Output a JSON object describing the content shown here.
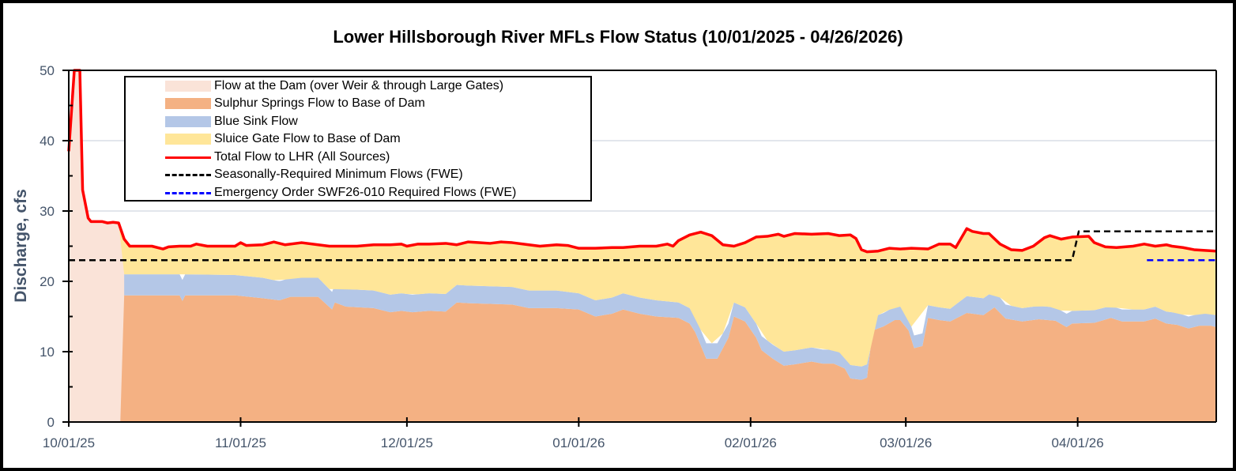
{
  "chart_data": {
    "type": "area",
    "title": "Lower Hillsborough River MFLs Flow Status (10/01/2025 - 04/26/2026)",
    "xlabel": "",
    "ylabel": "Discharge, cfs",
    "ylim": [
      0,
      50
    ],
    "yticks": [
      0,
      10,
      20,
      30,
      40,
      50
    ],
    "xticks": [
      "10/01/25",
      "11/01/25",
      "12/01/25",
      "01/01/26",
      "02/01/26",
      "03/01/26",
      "04/01/26"
    ],
    "xtick_days": [
      0,
      31,
      61,
      92,
      123,
      151,
      182
    ],
    "x_range_days": [
      0,
      207
    ],
    "grid": "horizontal",
    "legend_position": "upper-left inside plot",
    "colors": {
      "dam": "#fae3d8",
      "sulphur": "#f4b183",
      "bluesink": "#b4c7e7",
      "sluice": "#ffe699",
      "total": "#ff0000",
      "seasonal": "#000000",
      "emergency": "#0000ff"
    },
    "series": [
      {
        "name": "Flow at the Dam (over Weir & through Large Gates)",
        "kind": "stacked-area",
        "points": [
          [
            0,
            38.5
          ],
          [
            1,
            50
          ],
          [
            2,
            50
          ],
          [
            2.5,
            33
          ],
          [
            3.5,
            29
          ],
          [
            4,
            28.5
          ],
          [
            6,
            28.5
          ],
          [
            7,
            28.3
          ],
          [
            8,
            28.4
          ],
          [
            9,
            28.3
          ],
          [
            10,
            25
          ],
          [
            10.5,
            0
          ],
          [
            207,
            0
          ]
        ]
      },
      {
        "name": "Sulphur Springs Flow to Base of Dam",
        "kind": "stacked-area",
        "points": [
          [
            0,
            0
          ],
          [
            9.3,
            0
          ],
          [
            10,
            18
          ],
          [
            15,
            18
          ],
          [
            20,
            18
          ],
          [
            20.5,
            17.2
          ],
          [
            21,
            18
          ],
          [
            30,
            18
          ],
          [
            35,
            17.6
          ],
          [
            38,
            17.3
          ],
          [
            40,
            17.8
          ],
          [
            45,
            17.8
          ],
          [
            47.5,
            16
          ],
          [
            48,
            17
          ],
          [
            50,
            16.4
          ],
          [
            55,
            16.2
          ],
          [
            58,
            15.6
          ],
          [
            60,
            15.8
          ],
          [
            62,
            15.6
          ],
          [
            65,
            15.8
          ],
          [
            68,
            15.7
          ],
          [
            70,
            17
          ],
          [
            72,
            16.9
          ],
          [
            80,
            16.7
          ],
          [
            83,
            16.2
          ],
          [
            88,
            16.2
          ],
          [
            92,
            16
          ],
          [
            95,
            15
          ],
          [
            98,
            15.4
          ],
          [
            100,
            16
          ],
          [
            103,
            15.4
          ],
          [
            106,
            15
          ],
          [
            110,
            14.8
          ],
          [
            112,
            14
          ],
          [
            113,
            12.8
          ],
          [
            115,
            9
          ],
          [
            117,
            9
          ],
          [
            119,
            12
          ],
          [
            120,
            15
          ],
          [
            122,
            14.3
          ],
          [
            124,
            12
          ],
          [
            125,
            10.2
          ],
          [
            127,
            9
          ],
          [
            129,
            8
          ],
          [
            131,
            8.2
          ],
          [
            134,
            8.6
          ],
          [
            136,
            8.3
          ],
          [
            138,
            8.3
          ],
          [
            140,
            7.6
          ],
          [
            141,
            6.2
          ],
          [
            143,
            6
          ],
          [
            144,
            6.3
          ],
          [
            145,
            13
          ],
          [
            147,
            13.6
          ],
          [
            149,
            14.5
          ],
          [
            150,
            14.5
          ],
          [
            151.5,
            13
          ],
          [
            152.5,
            10.5
          ],
          [
            154,
            10.8
          ],
          [
            155,
            14.8
          ],
          [
            157,
            14.5
          ],
          [
            159,
            14.3
          ],
          [
            162,
            15.5
          ],
          [
            165,
            15.2
          ],
          [
            167,
            16.3
          ],
          [
            169,
            14.7
          ],
          [
            172,
            14.3
          ],
          [
            175,
            14.6
          ],
          [
            178,
            14.4
          ],
          [
            180,
            13.5
          ],
          [
            181,
            14
          ],
          [
            185,
            14.1
          ],
          [
            188,
            14.8
          ],
          [
            190,
            14.3
          ],
          [
            194,
            14.3
          ],
          [
            196,
            14.7
          ],
          [
            198,
            14
          ],
          [
            200,
            13.8
          ],
          [
            202,
            13.3
          ],
          [
            204,
            13.7
          ],
          [
            206,
            13.7
          ],
          [
            207,
            13.5
          ]
        ]
      },
      {
        "name": "Blue Sink Flow",
        "kind": "stacked-area",
        "points": [
          [
            10,
            3
          ],
          [
            15,
            3
          ],
          [
            20,
            3
          ],
          [
            20.5,
            3
          ],
          [
            21,
            3
          ],
          [
            30,
            2.9
          ],
          [
            35,
            2.9
          ],
          [
            38,
            2.7
          ],
          [
            40,
            2.7
          ],
          [
            45,
            2.7
          ],
          [
            47.5,
            2.5
          ],
          [
            48,
            2.5
          ],
          [
            50,
            2.5
          ],
          [
            55,
            2.5
          ],
          [
            58,
            2.5
          ],
          [
            60,
            2.5
          ],
          [
            62,
            2.5
          ],
          [
            65,
            2.5
          ],
          [
            68,
            2.5
          ],
          [
            70,
            2.5
          ],
          [
            72,
            2.5
          ],
          [
            80,
            2.5
          ],
          [
            83,
            2.5
          ],
          [
            88,
            2.5
          ],
          [
            92,
            2.3
          ],
          [
            95,
            2.3
          ],
          [
            98,
            2.3
          ],
          [
            100,
            2.3
          ],
          [
            103,
            2.3
          ],
          [
            106,
            2.3
          ],
          [
            110,
            2.2
          ],
          [
            112,
            2.2
          ],
          [
            113,
            2.2
          ],
          [
            115,
            2.2
          ],
          [
            117,
            2.2
          ],
          [
            119,
            2
          ],
          [
            120,
            2
          ],
          [
            122,
            2
          ],
          [
            124,
            2
          ],
          [
            125,
            2
          ],
          [
            127,
            2
          ],
          [
            129,
            2
          ],
          [
            131,
            2
          ],
          [
            134,
            2
          ],
          [
            136,
            2
          ],
          [
            138,
            2
          ],
          [
            140,
            1.9
          ],
          [
            141,
            1.9
          ],
          [
            143,
            1.9
          ],
          [
            144,
            1.9
          ],
          [
            145,
            1.9
          ],
          [
            147,
            1.9
          ],
          [
            149,
            1.9
          ],
          [
            150,
            1.9
          ],
          [
            151.5,
            1.8
          ],
          [
            152.5,
            1.8
          ],
          [
            154,
            1.8
          ],
          [
            155,
            1.8
          ],
          [
            157,
            1.8
          ],
          [
            159,
            1.8
          ],
          [
            162,
            2.4
          ],
          [
            165,
            2.4
          ],
          [
            167,
            2.4
          ],
          [
            169,
            2
          ],
          [
            172,
            1.9
          ],
          [
            175,
            1.9
          ],
          [
            178,
            1.9
          ],
          [
            180,
            1.9
          ],
          [
            181,
            1.8
          ],
          [
            185,
            1.8
          ],
          [
            188,
            1.7
          ],
          [
            190,
            1.7
          ],
          [
            194,
            1.7
          ],
          [
            196,
            1.7
          ],
          [
            198,
            1.7
          ],
          [
            200,
            1.7
          ],
          [
            202,
            1.7
          ],
          [
            204,
            1.7
          ],
          [
            206,
            1.7
          ],
          [
            207,
            1.7
          ]
        ]
      },
      {
        "name": "Sluice Gate Flow to Base of Dam",
        "kind": "stacked-area-to-total",
        "points": []
      },
      {
        "name": "Total Flow to LHR (All Sources)",
        "kind": "line",
        "points": [
          [
            0,
            38.5
          ],
          [
            1,
            50
          ],
          [
            2,
            50
          ],
          [
            2.5,
            33
          ],
          [
            3.5,
            29
          ],
          [
            4,
            28.5
          ],
          [
            6,
            28.5
          ],
          [
            7,
            28.3
          ],
          [
            8,
            28.4
          ],
          [
            9,
            28.3
          ],
          [
            10,
            26
          ],
          [
            11,
            25
          ],
          [
            15,
            25
          ],
          [
            17,
            24.6
          ],
          [
            18,
            24.9
          ],
          [
            20,
            25
          ],
          [
            22,
            25
          ],
          [
            23,
            25.3
          ],
          [
            25,
            25
          ],
          [
            30,
            25
          ],
          [
            31,
            25.5
          ],
          [
            32,
            25.1
          ],
          [
            35,
            25.2
          ],
          [
            37,
            25.6
          ],
          [
            39,
            25.2
          ],
          [
            42,
            25.5
          ],
          [
            45,
            25.2
          ],
          [
            47,
            25
          ],
          [
            52,
            25
          ],
          [
            55,
            25.2
          ],
          [
            58,
            25.2
          ],
          [
            60,
            25.3
          ],
          [
            61,
            25
          ],
          [
            63,
            25.3
          ],
          [
            65,
            25.3
          ],
          [
            68,
            25.4
          ],
          [
            70,
            25.2
          ],
          [
            72,
            25.6
          ],
          [
            74,
            25.5
          ],
          [
            76,
            25.4
          ],
          [
            78,
            25.6
          ],
          [
            80,
            25.5
          ],
          [
            83,
            25.2
          ],
          [
            85,
            25
          ],
          [
            88,
            25.2
          ],
          [
            90,
            25.1
          ],
          [
            92,
            24.7
          ],
          [
            95,
            24.7
          ],
          [
            98,
            24.8
          ],
          [
            100,
            24.8
          ],
          [
            103,
            25
          ],
          [
            106,
            25
          ],
          [
            108,
            25.3
          ],
          [
            109,
            25
          ],
          [
            110,
            25.8
          ],
          [
            112,
            26.6
          ],
          [
            114,
            27
          ],
          [
            116,
            26.5
          ],
          [
            118,
            25.2
          ],
          [
            120,
            25
          ],
          [
            122,
            25.5
          ],
          [
            124,
            26.3
          ],
          [
            126,
            26.4
          ],
          [
            128,
            26.7
          ],
          [
            129,
            26.4
          ],
          [
            131,
            26.8
          ],
          [
            134,
            26.7
          ],
          [
            137,
            26.8
          ],
          [
            139,
            26.5
          ],
          [
            141,
            26.6
          ],
          [
            142,
            26.1
          ],
          [
            143,
            24.5
          ],
          [
            144,
            24.2
          ],
          [
            146,
            24.3
          ],
          [
            148,
            24.7
          ],
          [
            150,
            24.6
          ],
          [
            152,
            24.7
          ],
          [
            155,
            24.6
          ],
          [
            157,
            25.3
          ],
          [
            159,
            25.3
          ],
          [
            160,
            24.8
          ],
          [
            162,
            27.5
          ],
          [
            163,
            27.1
          ],
          [
            165,
            26.8
          ],
          [
            166,
            26.8
          ],
          [
            168,
            25.3
          ],
          [
            170,
            24.5
          ],
          [
            172,
            24.4
          ],
          [
            174,
            25
          ],
          [
            176,
            26.2
          ],
          [
            177,
            26.5
          ],
          [
            179,
            26
          ],
          [
            181,
            26.3
          ],
          [
            184,
            26.4
          ],
          [
            185,
            25.5
          ],
          [
            187,
            24.9
          ],
          [
            189,
            24.8
          ],
          [
            192,
            25
          ],
          [
            194,
            25.3
          ],
          [
            196,
            25
          ],
          [
            198,
            25.2
          ],
          [
            199,
            25
          ],
          [
            201,
            24.8
          ],
          [
            203,
            24.5
          ],
          [
            205,
            24.4
          ],
          [
            207,
            24.3
          ]
        ]
      },
      {
        "name": "Seasonally-Required Minimum Flows (FWE)",
        "kind": "dashed-line",
        "points": [
          [
            0,
            23
          ],
          [
            181,
            23
          ],
          [
            182.2,
            27.1
          ],
          [
            207,
            27.1
          ]
        ]
      },
      {
        "name": "Emergency Order SWF26-010 Required Flows (FWE)",
        "kind": "dashed-line",
        "points": [
          [
            194.5,
            23
          ],
          [
            207,
            23
          ]
        ]
      }
    ]
  },
  "legend": {
    "items": [
      {
        "label": "Flow at the Dam (over Weir & through Large Gates)",
        "type": "area",
        "color": "#fae3d8"
      },
      {
        "label": "Sulphur Springs Flow to Base of Dam",
        "type": "area",
        "color": "#f4b183"
      },
      {
        "label": "Blue Sink Flow",
        "type": "area",
        "color": "#b4c7e7"
      },
      {
        "label": "Sluice Gate Flow to Base of Dam",
        "type": "area",
        "color": "#ffe699"
      },
      {
        "label": "Total Flow to LHR (All Sources)",
        "type": "line",
        "color": "#ff0000"
      },
      {
        "label": "Seasonally-Required Minimum Flows (FWE)",
        "type": "dashed",
        "color": "#000000"
      },
      {
        "label": "Emergency Order SWF26-010 Required Flows (FWE)",
        "type": "dashed",
        "color": "#0000ff"
      }
    ]
  }
}
